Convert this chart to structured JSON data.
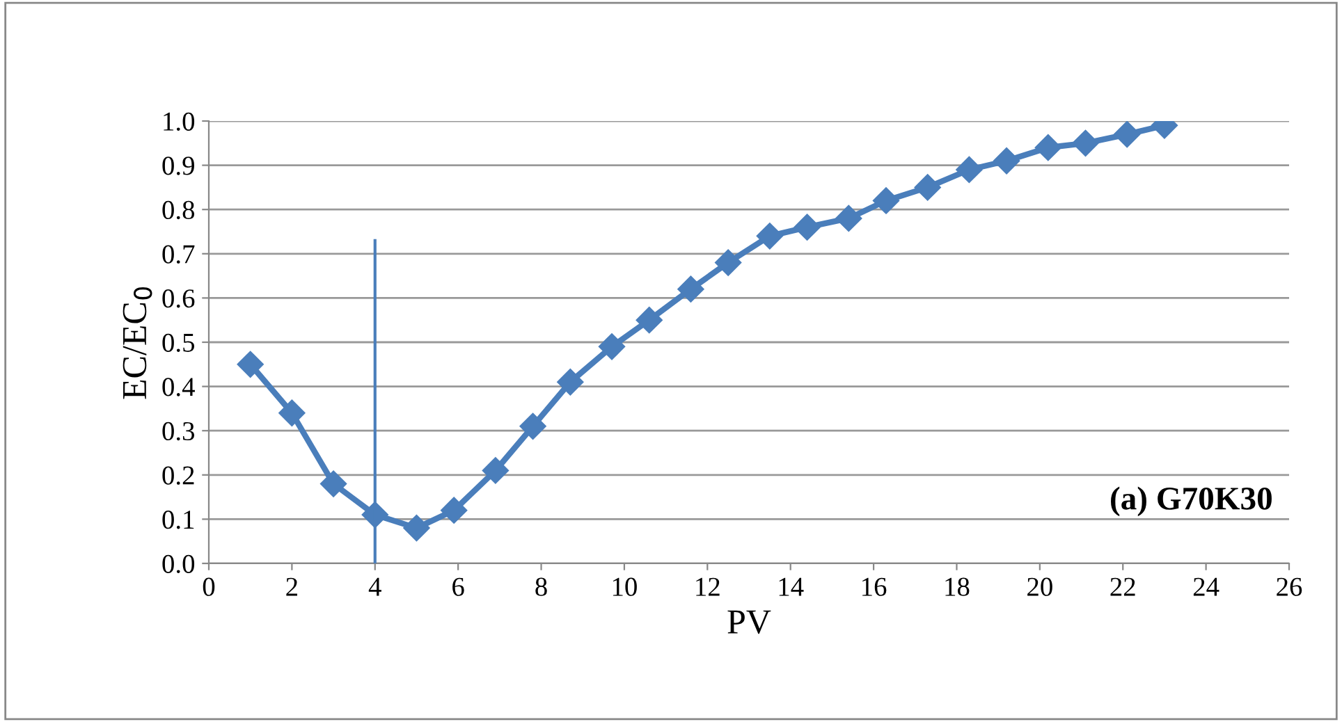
{
  "chart_data": {
    "type": "line",
    "xlabel": "PV",
    "ylabel": "EC/EC$_{0}$",
    "xlim": [
      0,
      26
    ],
    "xticks": [
      0,
      2,
      4,
      6,
      8,
      10,
      12,
      14,
      16,
      18,
      20,
      22,
      24,
      26
    ],
    "ylim": [
      0,
      1.0
    ],
    "yticks": [
      {
        "value": 0,
        "label": "0.0"
      },
      0.1,
      0.2,
      0.3,
      0.4,
      0.5,
      0.6,
      0.7,
      0.8,
      0.9,
      {
        "value": 1.0,
        "label": "1.0"
      }
    ],
    "grid": "y",
    "marker": "diamond",
    "line_style": "solid",
    "annotations": [
      "(a) G70K30"
    ],
    "series": [
      {
        "color": "#4a7ebb",
        "x": [
          1.0,
          2.0,
          3.0,
          4.0,
          5.0,
          5.9,
          6.9,
          7.8,
          8.7,
          9.7,
          10.6,
          11.6,
          12.5,
          13.5,
          14.4,
          15.4,
          16.3,
          17.3,
          18.3,
          19.2,
          20.2,
          21.1,
          22.1,
          23.0
        ],
        "values": [
          0.45,
          0.34,
          0.18,
          0.11,
          0.08,
          0.12,
          0.21,
          0.31,
          0.41,
          0.49,
          0.55,
          0.62,
          0.68,
          0.74,
          0.76,
          0.78,
          0.82,
          0.85,
          0.89,
          0.91,
          0.94,
          0.95,
          0.97,
          0.99
        ]
      },
      {
        "color": "#4a7ebb",
        "marker": "none",
        "x": [
          4,
          4
        ],
        "values": [
          0,
          0.73
        ]
      }
    ]
  }
}
